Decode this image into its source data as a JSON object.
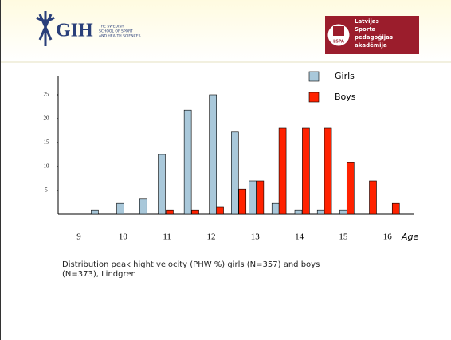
{
  "header": {
    "left_logo": "GIH",
    "left_logo_text": [
      "THE SWEDISH",
      "SCHOOL OF SPORT",
      "AND HEALTH SCIENCES"
    ],
    "right_logo_text": [
      "Latvijas",
      "Sporta",
      "pedagoģijas",
      "akadēmija"
    ],
    "right_badge": "LSPA"
  },
  "chart_data": {
    "type": "bar",
    "x_label": "Age",
    "xlim": [
      8.53,
      16.61
    ],
    "xticks": [
      9,
      10,
      11,
      12,
      13,
      14,
      15,
      16
    ],
    "ylim": [
      0,
      25
    ],
    "yticks": [
      5,
      10,
      15,
      20,
      25
    ],
    "legend": "upper right",
    "series": [
      {
        "name": "Girls",
        "color": "#a9c8da",
        "x": [
          9.36,
          9.94,
          10.46,
          10.88,
          11.47,
          12.04,
          12.54,
          12.94,
          13.46,
          13.98,
          14.49,
          15.0
        ],
        "values": [
          0.8,
          2.3,
          3.2,
          12.5,
          21.8,
          25,
          17.2,
          7,
          2.3,
          0.8,
          0.8,
          0.8
        ]
      },
      {
        "name": "Boys",
        "color": "#ff2200",
        "x": [
          11.06,
          11.64,
          12.2,
          12.71,
          13.11,
          13.62,
          14.15,
          14.65,
          15.16,
          15.67,
          16.19
        ],
        "values": [
          0.8,
          0.8,
          1.5,
          5.3,
          7,
          18,
          18,
          18,
          10.8,
          7,
          2.3
        ]
      }
    ]
  },
  "caption": [
    "Distribution peak hight velocity (PHW %) girls (N=357) and boys",
    "(N=373), Lindgren"
  ]
}
